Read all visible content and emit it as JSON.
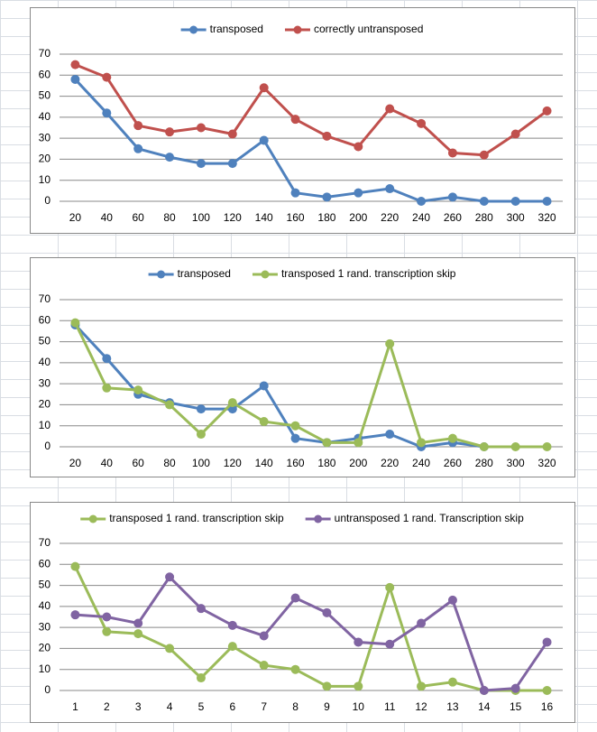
{
  "chart_data": [
    {
      "type": "line",
      "categories": [
        "20",
        "40",
        "60",
        "80",
        "100",
        "120",
        "140",
        "160",
        "180",
        "200",
        "220",
        "240",
        "260",
        "280",
        "300",
        "320"
      ],
      "series": [
        {
          "name": "transposed",
          "color": "#4f81bd",
          "values": [
            58,
            42,
            25,
            21,
            18,
            18,
            29,
            4,
            2,
            4,
            6,
            0,
            2,
            0,
            0,
            0
          ]
        },
        {
          "name": "correctly untransposed",
          "color": "#c0504d",
          "values": [
            65,
            59,
            36,
            33,
            35,
            32,
            54,
            39,
            31,
            26,
            44,
            37,
            23,
            22,
            32,
            43
          ]
        }
      ],
      "ylim": [
        0,
        70
      ],
      "yticks": [
        0,
        10,
        20,
        30,
        40,
        50,
        60,
        70
      ],
      "grid": true,
      "legend": "top"
    },
    {
      "type": "line",
      "categories": [
        "20",
        "40",
        "60",
        "80",
        "100",
        "120",
        "140",
        "160",
        "180",
        "200",
        "220",
        "240",
        "260",
        "280",
        "300",
        "320"
      ],
      "series": [
        {
          "name": "transposed",
          "color": "#4f81bd",
          "values": [
            58,
            42,
            25,
            21,
            18,
            18,
            29,
            4,
            2,
            4,
            6,
            0,
            2,
            0,
            null,
            null
          ]
        },
        {
          "name": "transposed 1 rand. transcription skip",
          "color": "#9bbb59",
          "values": [
            59,
            28,
            27,
            20,
            6,
            21,
            12,
            10,
            2,
            2,
            49,
            2,
            4,
            0,
            0,
            0
          ]
        }
      ],
      "ylim": [
        0,
        70
      ],
      "yticks": [
        0,
        10,
        20,
        30,
        40,
        50,
        60,
        70
      ],
      "grid": true,
      "legend": "top"
    },
    {
      "type": "line",
      "categories": [
        "1",
        "2",
        "3",
        "4",
        "5",
        "6",
        "7",
        "8",
        "9",
        "10",
        "11",
        "12",
        "13",
        "14",
        "15",
        "16"
      ],
      "series": [
        {
          "name": "transposed 1 rand. transcription skip",
          "color": "#9bbb59",
          "values": [
            59,
            28,
            27,
            20,
            6,
            21,
            12,
            10,
            2,
            2,
            49,
            2,
            4,
            0,
            0,
            0
          ]
        },
        {
          "name": "untransposed 1 rand. Transcription skip",
          "color": "#8064a2",
          "values": [
            36,
            35,
            32,
            54,
            39,
            31,
            26,
            44,
            37,
            23,
            22,
            32,
            43,
            0,
            1,
            23
          ]
        }
      ],
      "ylim": [
        0,
        70
      ],
      "yticks": [
        0,
        10,
        20,
        30,
        40,
        50,
        60,
        70
      ],
      "grid": true,
      "legend": "top"
    }
  ]
}
